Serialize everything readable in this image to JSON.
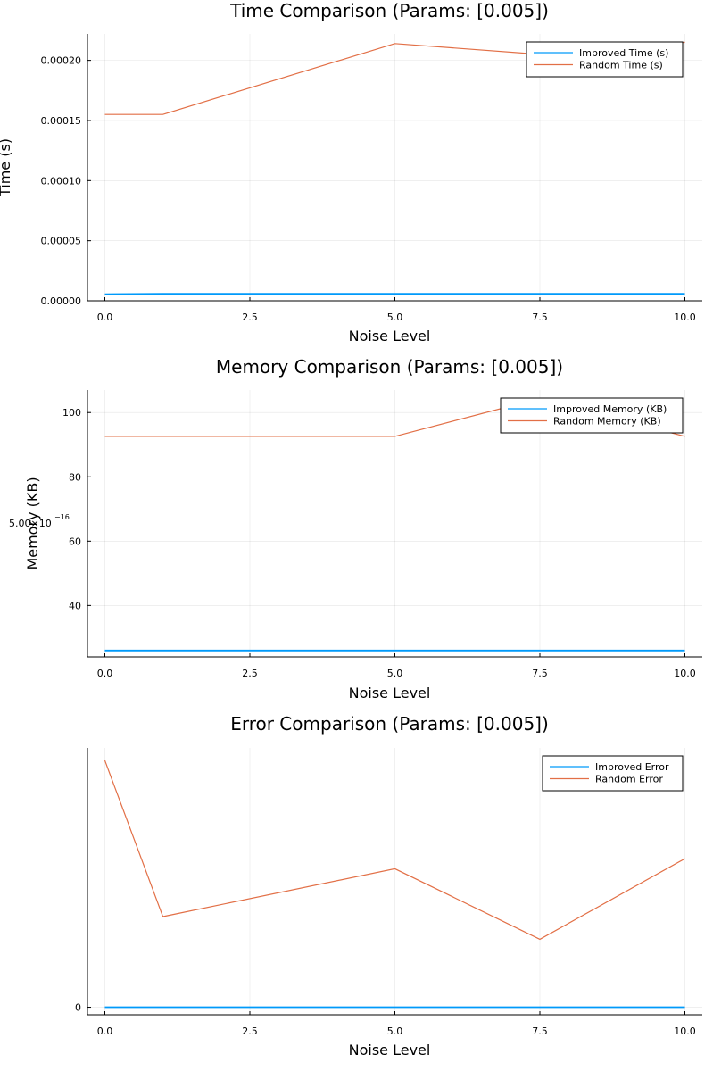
{
  "chart_data": [
    {
      "type": "line",
      "title": "Time Comparison (Params: [0.005])",
      "xlabel": "Noise Level",
      "ylabel": "Time (s)",
      "xlim": [
        -0.3,
        10.3
      ],
      "ylim": [
        0.0,
        0.000222
      ],
      "xticks": [
        "0.0",
        "2.5",
        "5.0",
        "7.5",
        "10.0"
      ],
      "xtick_values": [
        0,
        2.5,
        5,
        7.5,
        10
      ],
      "yticks": [
        "0.00000",
        "0.00005",
        "0.00010",
        "0.00015",
        "0.00020"
      ],
      "ytick_values": [
        0,
        5e-05,
        0.0001,
        0.00015,
        0.0002
      ],
      "grid": true,
      "legend_position": "top-right",
      "x": [
        0,
        1,
        5,
        7.5,
        10
      ],
      "series": [
        {
          "name": "Improved Time (s)",
          "color": "#009AFA",
          "values": [
            5.5e-06,
            5.8e-06,
            5.8e-06,
            5.8e-06,
            5.8e-06
          ]
        },
        {
          "name": "Random Time (s)",
          "color": "#E26F46",
          "values": [
            0.000155,
            0.000155,
            0.000214,
            0.000205,
            0.000215
          ]
        }
      ]
    },
    {
      "type": "line",
      "title": "Memory Comparison (Params: [0.005])",
      "xlabel": "Noise Level",
      "ylabel": "Memory (KB)",
      "xlim": [
        -0.3,
        10.3
      ],
      "ylim": [
        24,
        107
      ],
      "xticks": [
        "0.0",
        "2.5",
        "5.0",
        "7.5",
        "10.0"
      ],
      "xtick_values": [
        0,
        2.5,
        5,
        7.5,
        10
      ],
      "yticks": [
        "40",
        "60",
        "80",
        "100"
      ],
      "ytick_values": [
        40,
        60,
        80,
        100
      ],
      "stray_label": "5.00×10",
      "stray_label_exp": "−16",
      "grid": true,
      "legend_position": "top-right",
      "x": [
        0,
        1,
        5,
        7.5,
        10
      ],
      "series": [
        {
          "name": "Improved Memory (KB)",
          "color": "#009AFA",
          "values": [
            26,
            26,
            26,
            26,
            26
          ]
        },
        {
          "name": "Random Memory (KB)",
          "color": "#E26F46",
          "values": [
            92.6,
            92.6,
            92.6,
            104.4,
            92.6
          ]
        }
      ]
    },
    {
      "type": "line",
      "title": "Error Comparison (Params: [0.005])",
      "xlabel": "Noise Level",
      "ylabel": "",
      "xlim": [
        -0.3,
        10.3
      ],
      "ylim": [
        -0.3,
        10.3
      ],
      "xticks": [
        "0.0",
        "2.5",
        "5.0",
        "7.5",
        "10.0"
      ],
      "xtick_values": [
        0,
        2.5,
        5,
        7.5,
        10
      ],
      "yticks": [
        "0"
      ],
      "ytick_values": [
        0
      ],
      "grid": true,
      "legend_position": "top-right",
      "x": [
        0,
        1,
        5,
        7.5,
        10
      ],
      "series": [
        {
          "name": "Improved Error",
          "color": "#009AFA",
          "values": [
            0,
            0,
            0,
            0,
            0
          ]
        },
        {
          "name": "Random Error",
          "color": "#E26F46",
          "values": [
            9.8,
            3.6,
            5.5,
            2.7,
            5.9
          ]
        }
      ]
    }
  ]
}
